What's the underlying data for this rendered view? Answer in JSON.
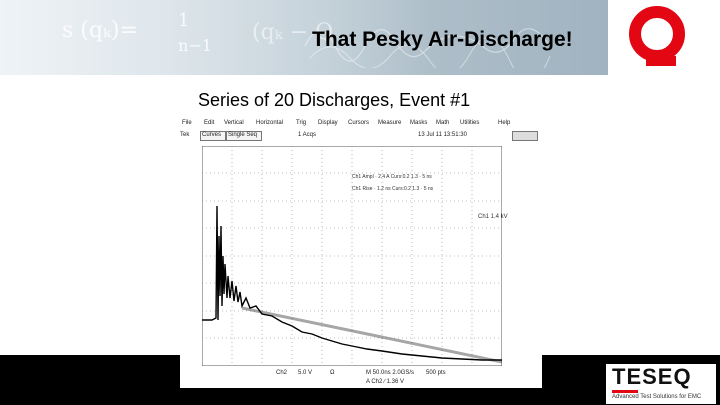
{
  "slide": {
    "title": "That Pesky Air-Discharge!",
    "subtitle": "Series of 20 Discharges, Event #1"
  },
  "header_math": {
    "m1": "s (qₖ)=",
    "m2": "1",
    "m3": "n−1",
    "m4": "(qₖ − Q"
  },
  "scope": {
    "menu": [
      "File",
      "Edit",
      "Vertical",
      "Horizontal",
      "Trig",
      "Display",
      "Cursors",
      "Measure",
      "Masks",
      "Math",
      "Utilities",
      "Help"
    ],
    "toolbar": {
      "trigger_label": "Tek",
      "acquire": "Curves",
      "mode": "Single Seq",
      "acq_count": "1 Acqs",
      "date_time": "13 Jul 11 13:51:30"
    },
    "readouts": {
      "line1": "Ch1 Ampl · 2.4 A  Curs:0.2 1.3 · 5 ns",
      "line2": "Ch1 Rise · 1.2 ns  Curs:0.2 1.3 · 5 ns",
      "side": "Ch1  1.4 kV"
    },
    "status": {
      "ch": "Ch2",
      "scale": "5.0 V",
      "ch3": "Ω",
      "timebase": "M 50.0ns  2.0GS/s",
      "timebase2": "A  Ch2  ∕  1.36 V",
      "points": "500 pts"
    },
    "trace_color": "#000000"
  },
  "brand": {
    "name": "TESEQ",
    "tagline": "Advanced Test Solutions for EMC",
    "accent": "#e30613"
  }
}
